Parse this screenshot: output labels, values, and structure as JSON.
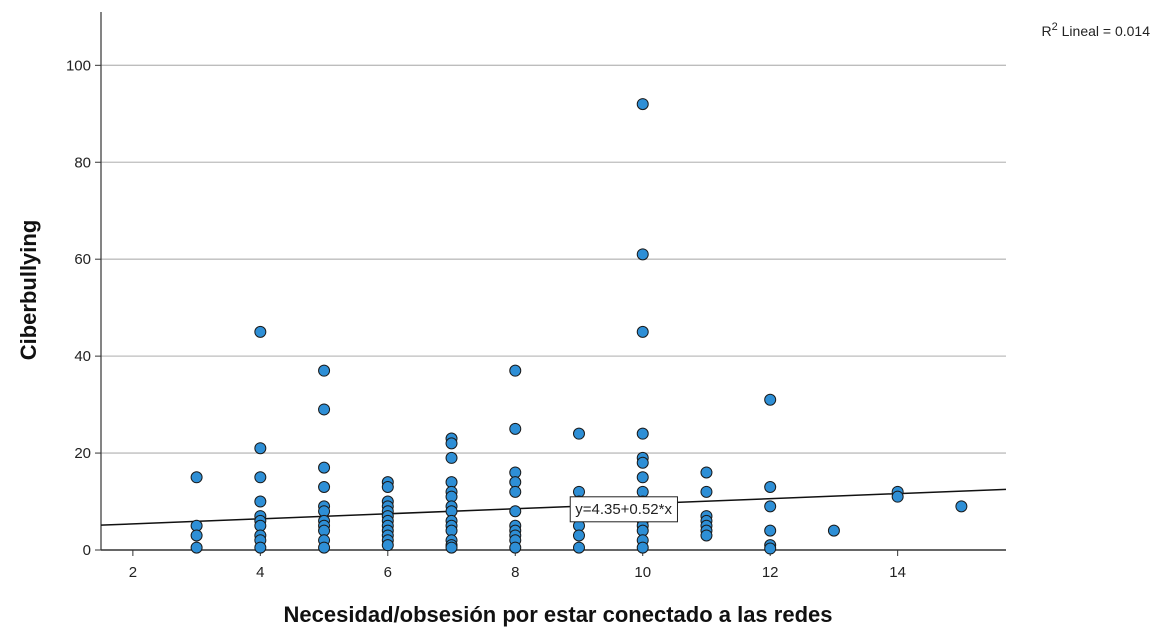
{
  "chart_data": {
    "type": "scatter",
    "xlabel": "Necesidad/obsesión por estar conectado a las redes",
    "ylabel": "Ciberbullying",
    "xlim": [
      1.5,
      15.7
    ],
    "ylim": [
      0,
      111
    ],
    "xticks": [
      2,
      4,
      6,
      8,
      10,
      12,
      14
    ],
    "yticks": [
      0,
      20,
      40,
      60,
      80,
      100
    ],
    "grid": "horizontal",
    "colors": {
      "point_fill": "#2e8fd6",
      "point_stroke": "#1a1a1a",
      "grid": "#bdbdbd",
      "fit_line": "#111111"
    },
    "fit_line": {
      "intercept": 4.35,
      "slope": 0.52,
      "equation_label": "y=4.35+0.52*x",
      "label_at": [
        9.7,
        8.5
      ]
    },
    "r2": {
      "prefix": "R",
      "sup": "2",
      "suffix": " Lineal = 0.014"
    },
    "points": [
      [
        3,
        15
      ],
      [
        3,
        5
      ],
      [
        3,
        3
      ],
      [
        3,
        0.5
      ],
      [
        4,
        45
      ],
      [
        4,
        21
      ],
      [
        4,
        15
      ],
      [
        4,
        10
      ],
      [
        4,
        7
      ],
      [
        4,
        6
      ],
      [
        4,
        5
      ],
      [
        4,
        3
      ],
      [
        4,
        2
      ],
      [
        4,
        0.5
      ],
      [
        5,
        37
      ],
      [
        5,
        29
      ],
      [
        5,
        17
      ],
      [
        5,
        13
      ],
      [
        5,
        9
      ],
      [
        5,
        8
      ],
      [
        5,
        6
      ],
      [
        5,
        5
      ],
      [
        5,
        4
      ],
      [
        5,
        2
      ],
      [
        5,
        0.5
      ],
      [
        6,
        14
      ],
      [
        6,
        13
      ],
      [
        6,
        10
      ],
      [
        6,
        9
      ],
      [
        6,
        8
      ],
      [
        6,
        7
      ],
      [
        6,
        6
      ],
      [
        6,
        5
      ],
      [
        6,
        4
      ],
      [
        6,
        3
      ],
      [
        6,
        2
      ],
      [
        6,
        1
      ],
      [
        7,
        23
      ],
      [
        7,
        22
      ],
      [
        7,
        19
      ],
      [
        7,
        14
      ],
      [
        7,
        12
      ],
      [
        7,
        11
      ],
      [
        7,
        9
      ],
      [
        7,
        8
      ],
      [
        7,
        6
      ],
      [
        7,
        5
      ],
      [
        7,
        4
      ],
      [
        7,
        2
      ],
      [
        7,
        1
      ],
      [
        7,
        0.5
      ],
      [
        8,
        37
      ],
      [
        8,
        25
      ],
      [
        8,
        16
      ],
      [
        8,
        14
      ],
      [
        8,
        12
      ],
      [
        8,
        8
      ],
      [
        8,
        5
      ],
      [
        8,
        4
      ],
      [
        8,
        3
      ],
      [
        8,
        2
      ],
      [
        8,
        0.5
      ],
      [
        9,
        24
      ],
      [
        9,
        12
      ],
      [
        9,
        10
      ],
      [
        9,
        8
      ],
      [
        9,
        5
      ],
      [
        9,
        3
      ],
      [
        9,
        0.5
      ],
      [
        10,
        92
      ],
      [
        10,
        61
      ],
      [
        10,
        45
      ],
      [
        10,
        24
      ],
      [
        10,
        19
      ],
      [
        10,
        18
      ],
      [
        10,
        15
      ],
      [
        10,
        12
      ],
      [
        10,
        10
      ],
      [
        10,
        8
      ],
      [
        10,
        6
      ],
      [
        10,
        5
      ],
      [
        10,
        4
      ],
      [
        10,
        2
      ],
      [
        10,
        0.5
      ],
      [
        11,
        16
      ],
      [
        11,
        12
      ],
      [
        11,
        7
      ],
      [
        11,
        6
      ],
      [
        11,
        5
      ],
      [
        11,
        4
      ],
      [
        11,
        3
      ],
      [
        12,
        31
      ],
      [
        12,
        13
      ],
      [
        12,
        9
      ],
      [
        12,
        4
      ],
      [
        12,
        1
      ],
      [
        12,
        0.3
      ],
      [
        13,
        4
      ],
      [
        14,
        12
      ],
      [
        14,
        11
      ],
      [
        15,
        9
      ]
    ]
  }
}
